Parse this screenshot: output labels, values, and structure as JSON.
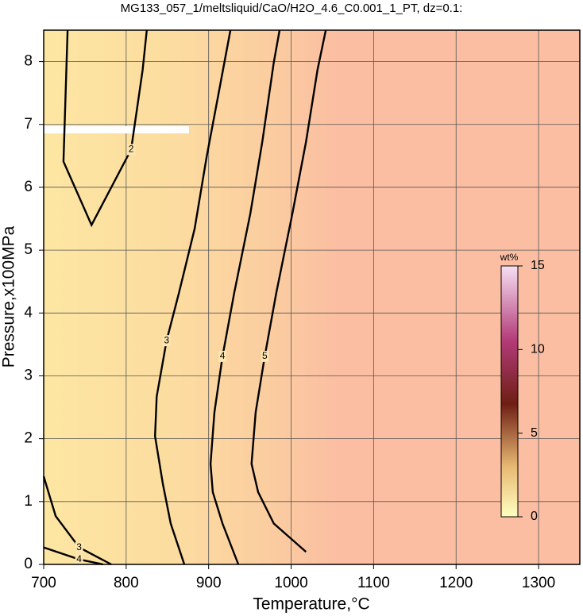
{
  "chart_data": {
    "type": "contour",
    "title": "MG133_057_1/meltsliquid/CaO/H2O_4.6_C0.001_1_PT, dz=0.1:",
    "xlabel": "Temperature,°C",
    "ylabel": "Pressure,x100MPa",
    "xlim": [
      700,
      1350
    ],
    "ylim": [
      0,
      8.5
    ],
    "xticks": [
      700,
      800,
      900,
      1000,
      1100,
      1200,
      1300
    ],
    "yticks": [
      0,
      1,
      2,
      3,
      4,
      5,
      6,
      7,
      8
    ],
    "grid": true,
    "contours": [
      {
        "level": 2,
        "x": [
          729,
          724,
          758,
          806,
          820,
          825
        ],
        "y": [
          8.5,
          6.41,
          5.4,
          6.6,
          7.87,
          8.5
        ]
      },
      {
        "level": 3,
        "x": [
          870.5,
          854,
          844.5,
          835,
          837,
          849,
          864,
          883,
          897.5,
          912,
          926.4
        ],
        "y": [
          0,
          0.65,
          1.28,
          2.04,
          2.67,
          3.56,
          4.32,
          5.34,
          6.48,
          7.49,
          8.5
        ]
      },
      {
        "level": 4,
        "x": [
          936,
          916.8,
          905,
          902.3,
          907,
          916.8,
          931,
          950.5,
          965,
          979,
          986
        ],
        "y": [
          0,
          0.65,
          1.15,
          1.6,
          2.42,
          3.31,
          4.32,
          5.58,
          6.72,
          7.99,
          8.5
        ]
      },
      {
        "level": 5,
        "x": [
          1018,
          979,
          960,
          952,
          957,
          968,
          982,
          1001.5,
          1018,
          1032,
          1042
        ],
        "y": [
          0.2,
          0.65,
          1.15,
          1.6,
          2.42,
          3.31,
          4.32,
          5.58,
          6.72,
          7.87,
          8.5
        ]
      },
      {
        "level": 3,
        "x": [
          700,
          714.5,
          743,
          782
        ],
        "y": [
          1.4,
          0.77,
          0.27,
          0
        ]
      },
      {
        "level": 4,
        "x": [
          700,
          743,
          772
        ],
        "y": [
          0.27,
          0.08,
          0
        ]
      }
    ],
    "colorbar": {
      "label": "wt%",
      "lim": [
        0,
        15
      ],
      "ticks": [
        0,
        5,
        10,
        15
      ]
    }
  }
}
